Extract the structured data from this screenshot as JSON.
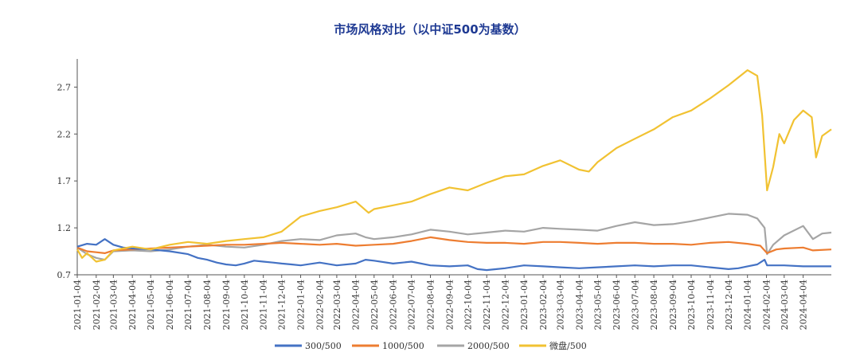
{
  "chart_data": {
    "type": "line",
    "title": "市场风格对比（以中证500为基数）",
    "xlabel": "",
    "ylabel": "",
    "ylim": [
      0.7,
      3.0
    ],
    "yticks": [
      0.7,
      1.2,
      1.7,
      2.2,
      2.7
    ],
    "ytick_labels": [
      "0.7",
      "1.2",
      "1.7",
      "2.2",
      "2.7"
    ],
    "xlim": [
      "2021-01-04",
      "2024-05-20"
    ],
    "xtick_labels": [
      "2021-01-04",
      "2021-02-04",
      "2021-03-04",
      "2021-04-04",
      "2021-05-04",
      "2021-06-04",
      "2021-07-04",
      "2021-08-04",
      "2021-09-04",
      "2021-10-04",
      "2021-11-04",
      "2021-12-04",
      "2022-01-04",
      "2022-02-04",
      "2022-03-04",
      "2022-04-04",
      "2022-05-04",
      "2022-06-04",
      "2022-07-04",
      "2022-08-04",
      "2022-09-04",
      "2022-10-04",
      "2022-11-04",
      "2022-12-04",
      "2023-01-04",
      "2023-02-04",
      "2023-03-04",
      "2023-04-04",
      "2023-05-04",
      "2023-06-04",
      "2023-07-04",
      "2023-08-04",
      "2023-09-04",
      "2023-10-04",
      "2023-11-04",
      "2023-12-04",
      "2024-01-04",
      "2024-02-04",
      "2024-03-04",
      "2024-04-04"
    ],
    "grid": false,
    "legend": "bottom",
    "series": [
      {
        "name": "300/500",
        "color": "#4472c4",
        "points": [
          [
            "2021-01-04",
            1.0
          ],
          [
            "2021-01-20",
            1.03
          ],
          [
            "2021-02-04",
            1.02
          ],
          [
            "2021-02-18",
            1.08
          ],
          [
            "2021-03-04",
            1.02
          ],
          [
            "2021-03-20",
            0.99
          ],
          [
            "2021-04-04",
            0.98
          ],
          [
            "2021-05-04",
            0.97
          ],
          [
            "2021-06-04",
            0.95
          ],
          [
            "2021-07-04",
            0.92
          ],
          [
            "2021-07-20",
            0.88
          ],
          [
            "2021-08-04",
            0.86
          ],
          [
            "2021-08-20",
            0.83
          ],
          [
            "2021-09-04",
            0.81
          ],
          [
            "2021-09-20",
            0.8
          ],
          [
            "2021-10-04",
            0.82
          ],
          [
            "2021-10-20",
            0.85
          ],
          [
            "2021-11-04",
            0.84
          ],
          [
            "2021-11-20",
            0.83
          ],
          [
            "2021-12-04",
            0.82
          ],
          [
            "2021-12-20",
            0.81
          ],
          [
            "2022-01-04",
            0.8
          ],
          [
            "2022-02-04",
            0.83
          ],
          [
            "2022-03-04",
            0.8
          ],
          [
            "2022-04-04",
            0.82
          ],
          [
            "2022-04-20",
            0.86
          ],
          [
            "2022-05-04",
            0.85
          ],
          [
            "2022-06-04",
            0.82
          ],
          [
            "2022-07-04",
            0.84
          ],
          [
            "2022-08-04",
            0.8
          ],
          [
            "2022-09-04",
            0.79
          ],
          [
            "2022-10-04",
            0.8
          ],
          [
            "2022-10-20",
            0.76
          ],
          [
            "2022-11-04",
            0.75
          ],
          [
            "2022-11-20",
            0.76
          ],
          [
            "2022-12-04",
            0.77
          ],
          [
            "2023-01-04",
            0.8
          ],
          [
            "2023-02-04",
            0.79
          ],
          [
            "2023-03-04",
            0.78
          ],
          [
            "2023-04-04",
            0.77
          ],
          [
            "2023-05-04",
            0.78
          ],
          [
            "2023-06-04",
            0.79
          ],
          [
            "2023-07-04",
            0.8
          ],
          [
            "2023-08-04",
            0.79
          ],
          [
            "2023-09-04",
            0.8
          ],
          [
            "2023-10-04",
            0.8
          ],
          [
            "2023-11-04",
            0.78
          ],
          [
            "2023-12-04",
            0.76
          ],
          [
            "2023-12-20",
            0.77
          ],
          [
            "2024-01-04",
            0.79
          ],
          [
            "2024-01-20",
            0.81
          ],
          [
            "2024-02-01",
            0.86
          ],
          [
            "2024-02-05",
            0.8
          ],
          [
            "2024-02-20",
            0.8
          ],
          [
            "2024-03-04",
            0.8
          ],
          [
            "2024-04-04",
            0.79
          ],
          [
            "2024-05-20",
            0.79
          ]
        ]
      },
      {
        "name": "1000/500",
        "color": "#ed7d31",
        "points": [
          [
            "2021-01-04",
            0.99
          ],
          [
            "2021-01-20",
            0.95
          ],
          [
            "2021-02-04",
            0.94
          ],
          [
            "2021-02-18",
            0.93
          ],
          [
            "2021-03-04",
            0.96
          ],
          [
            "2021-04-04",
            0.97
          ],
          [
            "2021-05-04",
            0.98
          ],
          [
            "2021-06-04",
            0.99
          ],
          [
            "2021-07-04",
            1.0
          ],
          [
            "2021-08-04",
            1.01
          ],
          [
            "2021-09-04",
            1.02
          ],
          [
            "2021-10-04",
            1.02
          ],
          [
            "2021-11-04",
            1.03
          ],
          [
            "2021-12-04",
            1.04
          ],
          [
            "2022-01-04",
            1.03
          ],
          [
            "2022-02-04",
            1.02
          ],
          [
            "2022-03-04",
            1.03
          ],
          [
            "2022-04-04",
            1.01
          ],
          [
            "2022-05-04",
            1.02
          ],
          [
            "2022-06-04",
            1.03
          ],
          [
            "2022-07-04",
            1.06
          ],
          [
            "2022-08-04",
            1.1
          ],
          [
            "2022-09-04",
            1.07
          ],
          [
            "2022-10-04",
            1.05
          ],
          [
            "2022-11-04",
            1.04
          ],
          [
            "2022-12-04",
            1.04
          ],
          [
            "2023-01-04",
            1.03
          ],
          [
            "2023-02-04",
            1.05
          ],
          [
            "2023-03-04",
            1.05
          ],
          [
            "2023-04-04",
            1.04
          ],
          [
            "2023-05-04",
            1.03
          ],
          [
            "2023-06-04",
            1.04
          ],
          [
            "2023-07-04",
            1.04
          ],
          [
            "2023-08-04",
            1.03
          ],
          [
            "2023-09-04",
            1.03
          ],
          [
            "2023-10-04",
            1.02
          ],
          [
            "2023-11-04",
            1.04
          ],
          [
            "2023-12-04",
            1.05
          ],
          [
            "2024-01-04",
            1.03
          ],
          [
            "2024-01-25",
            1.01
          ],
          [
            "2024-02-05",
            0.93
          ],
          [
            "2024-02-20",
            0.97
          ],
          [
            "2024-03-04",
            0.98
          ],
          [
            "2024-04-04",
            0.99
          ],
          [
            "2024-04-20",
            0.96
          ],
          [
            "2024-05-20",
            0.97
          ]
        ]
      },
      {
        "name": "2000/500",
        "color": "#a5a5a5",
        "points": [
          [
            "2021-01-04",
            0.99
          ],
          [
            "2021-01-20",
            0.92
          ],
          [
            "2021-02-04",
            0.88
          ],
          [
            "2021-02-18",
            0.86
          ],
          [
            "2021-03-04",
            0.95
          ],
          [
            "2021-04-04",
            0.96
          ],
          [
            "2021-05-04",
            0.95
          ],
          [
            "2021-06-04",
            0.97
          ],
          [
            "2021-07-04",
            1.0
          ],
          [
            "2021-08-04",
            1.02
          ],
          [
            "2021-09-04",
            1.0
          ],
          [
            "2021-10-04",
            0.99
          ],
          [
            "2021-11-04",
            1.02
          ],
          [
            "2021-12-04",
            1.06
          ],
          [
            "2022-01-04",
            1.08
          ],
          [
            "2022-02-04",
            1.07
          ],
          [
            "2022-03-04",
            1.12
          ],
          [
            "2022-04-04",
            1.14
          ],
          [
            "2022-04-20",
            1.1
          ],
          [
            "2022-05-04",
            1.08
          ],
          [
            "2022-06-04",
            1.1
          ],
          [
            "2022-07-04",
            1.13
          ],
          [
            "2022-08-04",
            1.18
          ],
          [
            "2022-09-04",
            1.16
          ],
          [
            "2022-10-04",
            1.13
          ],
          [
            "2022-11-04",
            1.15
          ],
          [
            "2022-12-04",
            1.17
          ],
          [
            "2023-01-04",
            1.16
          ],
          [
            "2023-02-04",
            1.2
          ],
          [
            "2023-03-04",
            1.19
          ],
          [
            "2023-04-04",
            1.18
          ],
          [
            "2023-05-04",
            1.17
          ],
          [
            "2023-06-04",
            1.22
          ],
          [
            "2023-07-04",
            1.26
          ],
          [
            "2023-08-04",
            1.23
          ],
          [
            "2023-09-04",
            1.24
          ],
          [
            "2023-10-04",
            1.27
          ],
          [
            "2023-11-04",
            1.31
          ],
          [
            "2023-12-04",
            1.35
          ],
          [
            "2024-01-04",
            1.34
          ],
          [
            "2024-01-20",
            1.3
          ],
          [
            "2024-02-01",
            1.2
          ],
          [
            "2024-02-05",
            0.92
          ],
          [
            "2024-02-15",
            1.02
          ],
          [
            "2024-03-04",
            1.12
          ],
          [
            "2024-04-04",
            1.22
          ],
          [
            "2024-04-20",
            1.08
          ],
          [
            "2024-05-05",
            1.14
          ],
          [
            "2024-05-20",
            1.15
          ]
        ]
      },
      {
        "name": "微盘/500",
        "color": "#f1c232",
        "points": [
          [
            "2021-01-04",
            0.97
          ],
          [
            "2021-01-12",
            0.88
          ],
          [
            "2021-01-20",
            0.93
          ],
          [
            "2021-02-04",
            0.84
          ],
          [
            "2021-02-18",
            0.86
          ],
          [
            "2021-03-04",
            0.96
          ],
          [
            "2021-04-04",
            1.0
          ],
          [
            "2021-05-04",
            0.97
          ],
          [
            "2021-06-04",
            1.02
          ],
          [
            "2021-07-04",
            1.05
          ],
          [
            "2021-08-04",
            1.03
          ],
          [
            "2021-09-04",
            1.06
          ],
          [
            "2021-10-04",
            1.08
          ],
          [
            "2021-11-04",
            1.1
          ],
          [
            "2021-12-04",
            1.16
          ],
          [
            "2022-01-04",
            1.32
          ],
          [
            "2022-02-04",
            1.38
          ],
          [
            "2022-03-04",
            1.42
          ],
          [
            "2022-04-04",
            1.48
          ],
          [
            "2022-04-25",
            1.36
          ],
          [
            "2022-05-04",
            1.4
          ],
          [
            "2022-06-04",
            1.44
          ],
          [
            "2022-07-04",
            1.48
          ],
          [
            "2022-08-04",
            1.56
          ],
          [
            "2022-09-04",
            1.63
          ],
          [
            "2022-10-04",
            1.6
          ],
          [
            "2022-11-04",
            1.68
          ],
          [
            "2022-12-04",
            1.75
          ],
          [
            "2023-01-04",
            1.77
          ],
          [
            "2023-02-04",
            1.86
          ],
          [
            "2023-03-04",
            1.92
          ],
          [
            "2023-04-04",
            1.82
          ],
          [
            "2023-04-20",
            1.8
          ],
          [
            "2023-05-04",
            1.9
          ],
          [
            "2023-06-04",
            2.05
          ],
          [
            "2023-07-04",
            2.15
          ],
          [
            "2023-08-04",
            2.25
          ],
          [
            "2023-09-04",
            2.38
          ],
          [
            "2023-10-04",
            2.45
          ],
          [
            "2023-11-04",
            2.58
          ],
          [
            "2023-12-04",
            2.72
          ],
          [
            "2024-01-04",
            2.88
          ],
          [
            "2024-01-20",
            2.82
          ],
          [
            "2024-01-28",
            2.4
          ],
          [
            "2024-02-05",
            1.6
          ],
          [
            "2024-02-15",
            1.85
          ],
          [
            "2024-02-25",
            2.2
          ],
          [
            "2024-03-04",
            2.1
          ],
          [
            "2024-03-20",
            2.35
          ],
          [
            "2024-04-04",
            2.45
          ],
          [
            "2024-04-18",
            2.38
          ],
          [
            "2024-04-25",
            1.95
          ],
          [
            "2024-05-05",
            2.18
          ],
          [
            "2024-05-20",
            2.25
          ]
        ]
      }
    ]
  }
}
